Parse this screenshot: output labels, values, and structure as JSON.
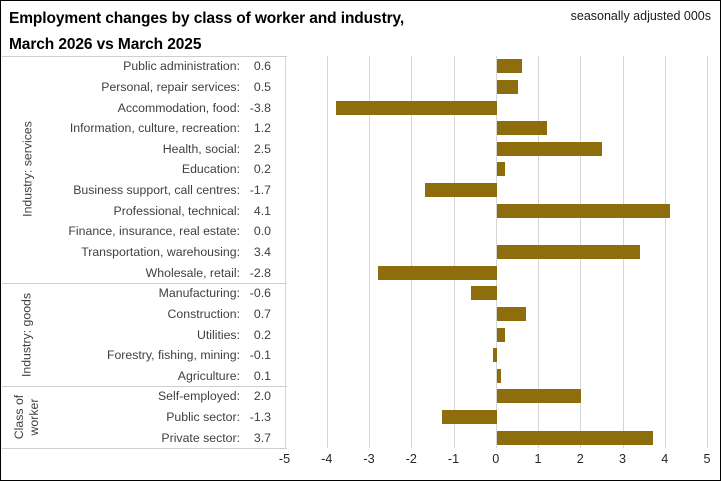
{
  "header": {
    "title_line1": "Employment changes by class of worker and industry,",
    "title_line2": "March 2026 vs March 2025",
    "note": "seasonally adjusted 000s"
  },
  "colors": {
    "bar": "#8E6E0C",
    "gridline": "#D6D6D6",
    "separator": "#D0CECE",
    "label_text": "#3F3F3F",
    "frame_border": "#000000"
  },
  "chart_data": {
    "type": "bar",
    "orientation": "horizontal",
    "title": "Employment changes by class of worker and industry, March 2026 vs March 2025",
    "units_note": "seasonally adjusted 000s",
    "xlim": [
      -5,
      5
    ],
    "xticks": [
      -5,
      -4,
      -3,
      -2,
      -1,
      0,
      1,
      2,
      3,
      4,
      5
    ],
    "grid": "vertical",
    "value_decimals": 1,
    "bar_color": "#8E6E0C",
    "groups": [
      {
        "label": "Industry: services",
        "items": [
          {
            "label": "Public administration",
            "value": 0.6
          },
          {
            "label": "Personal, repair services",
            "value": 0.5
          },
          {
            "label": "Accommodation, food",
            "value": -3.8
          },
          {
            "label": "Information, culture, recreation",
            "value": 1.2
          },
          {
            "label": "Health, social",
            "value": 2.5
          },
          {
            "label": "Education",
            "value": 0.2
          },
          {
            "label": "Business support, call centres",
            "value": -1.7
          },
          {
            "label": "Professional, technical",
            "value": 4.1
          },
          {
            "label": "Finance, insurance, real estate",
            "value": 0.0
          },
          {
            "label": "Transportation, warehousing",
            "value": 3.4
          },
          {
            "label": "Wholesale, retail",
            "value": -2.8
          }
        ]
      },
      {
        "label": "Industry: goods",
        "items": [
          {
            "label": "Manufacturing",
            "value": -0.6
          },
          {
            "label": "Construction",
            "value": 0.7
          },
          {
            "label": "Utilities",
            "value": 0.2
          },
          {
            "label": "Forestry, fishing, mining",
            "value": -0.1
          },
          {
            "label": "Agriculture",
            "value": 0.1
          }
        ]
      },
      {
        "label": "Class of worker",
        "items": [
          {
            "label": "Self-employed",
            "value": 2.0
          },
          {
            "label": "Public sector",
            "value": -1.3
          },
          {
            "label": "Private sector",
            "value": 3.7
          }
        ]
      }
    ]
  }
}
